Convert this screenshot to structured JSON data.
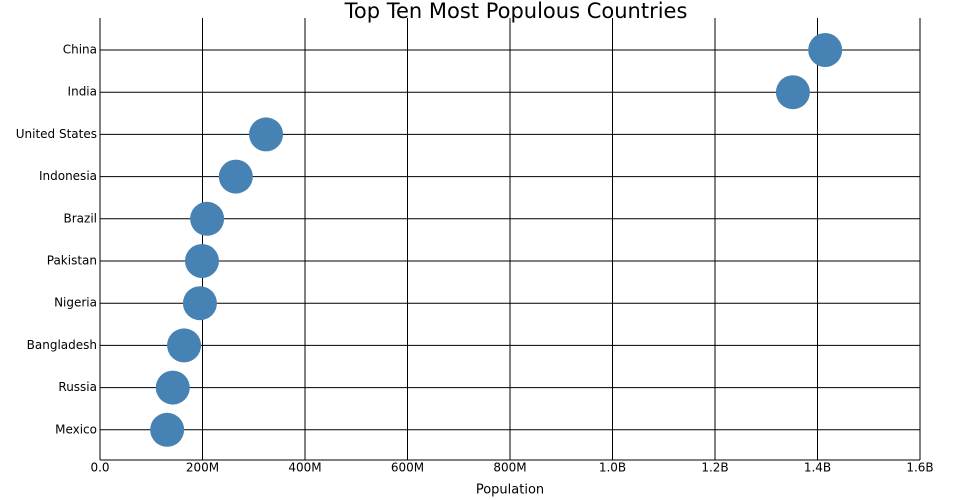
{
  "chart_data": {
    "type": "dot",
    "title": "Top Ten Most Populous Countries",
    "x_label": "Population",
    "categories": [
      "China",
      "India",
      "United States",
      "Indonesia",
      "Brazil",
      "Pakistan",
      "Nigeria",
      "Bangladesh",
      "Russia",
      "Mexico"
    ],
    "values": [
      1415000000,
      1352000000,
      324000000,
      265000000,
      209000000,
      199000000,
      195000000,
      164000000,
      142000000,
      131000000
    ],
    "color": "#4682b4",
    "xlim": [
      0,
      1600000000
    ],
    "xticks": [
      {
        "value": 0,
        "label": "0.0"
      },
      {
        "value": 200000000,
        "label": "200M"
      },
      {
        "value": 400000000,
        "label": "400M"
      },
      {
        "value": 600000000,
        "label": "600M"
      },
      {
        "value": 800000000,
        "label": "800M"
      },
      {
        "value": 1000000000,
        "label": "1.0B"
      },
      {
        "value": 1200000000,
        "label": "1.2B"
      },
      {
        "value": 1400000000,
        "label": "1.4B"
      },
      {
        "value": 1600000000,
        "label": "1.6B"
      }
    ],
    "grid": true
  }
}
